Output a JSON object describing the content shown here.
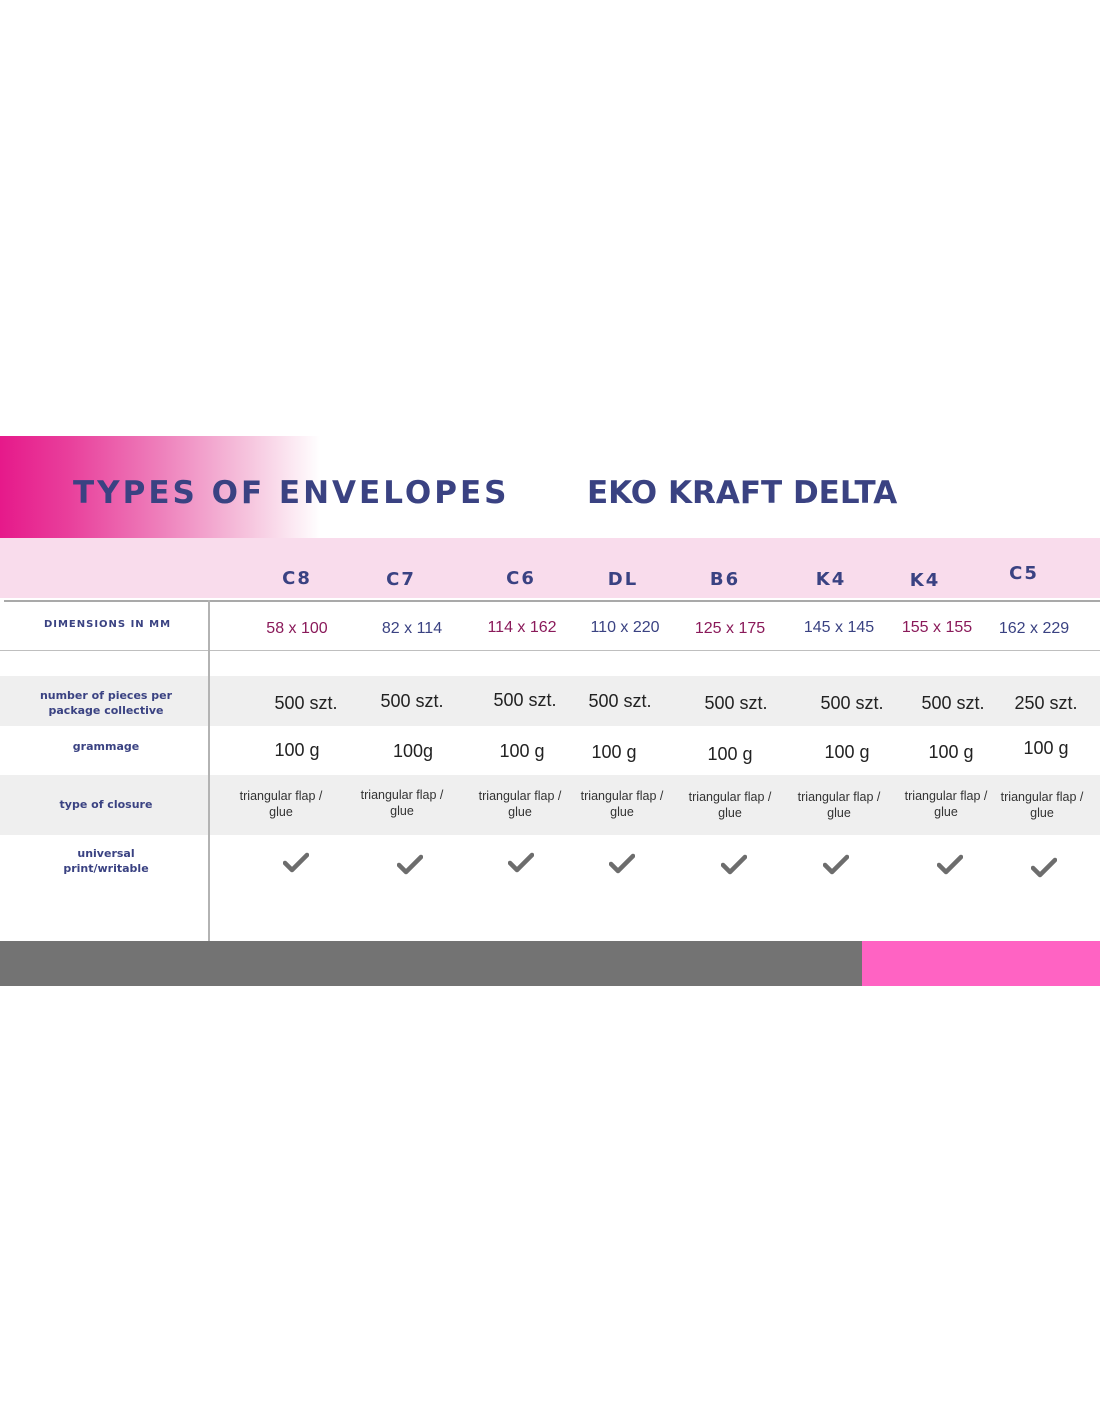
{
  "header": {
    "title": "TYPES OF ENVELOPES",
    "subtitle": "EKO KRAFT DELTA"
  },
  "colors": {
    "accent_pink": "#e6198a",
    "header_band": "#f9dcec",
    "text_navy": "#3a4282",
    "dimension_text_a": "#8a1a5a",
    "dimension_text_b": "#3a4282",
    "footer_gray": "#737373",
    "footer_pink": "#ff63c3",
    "check_color": "#6d6d6d"
  },
  "table": {
    "columns": [
      "C8",
      "C7",
      "C6",
      "DL",
      "B6",
      "K4",
      "K4",
      "C5"
    ],
    "dimensions_label": "DIMENSIONS IN MM",
    "dimensions": [
      "58 x 100",
      "82 x 114",
      "114 x 162",
      "110 x 220",
      "125 x 175",
      "145 x 145",
      "155 x 155",
      "162 x 229"
    ],
    "pieces_label_line1": "number of pieces per",
    "pieces_label_line2": "package collective",
    "pieces": [
      "500 szt.",
      "500 szt.",
      "500 szt.",
      "500 szt.",
      "500 szt.",
      "500 szt.",
      "500 szt.",
      "250 szt."
    ],
    "grammage_label": "grammage",
    "grammage": [
      "100 g",
      "100g",
      "100 g",
      "100 g",
      "100 g",
      "100 g",
      "100 g",
      "100 g"
    ],
    "closure_label": "type of closure",
    "closure_line1": "triangular flap /",
    "closure_line2": "glue",
    "universal_label_line1": "universal",
    "universal_label_line2": "print/writable",
    "universal_icon": "checkmark-icon"
  }
}
